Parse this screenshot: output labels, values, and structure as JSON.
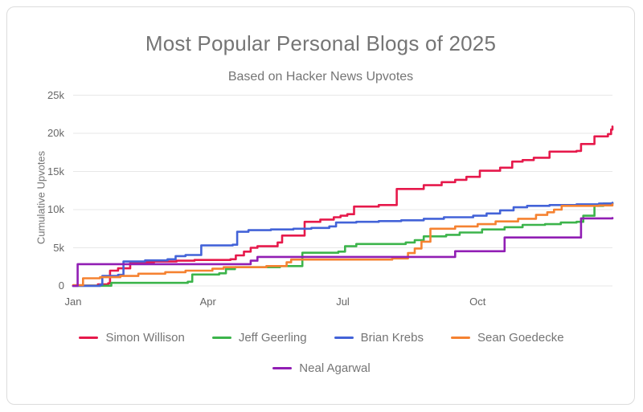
{
  "header": {
    "title": "Most Popular Personal Blogs of 2025",
    "subtitle": "Based on Hacker News Upvotes"
  },
  "chart_data": {
    "type": "line",
    "step": true,
    "title": "Most Popular Personal Blogs of 2025",
    "subtitle": "Based on Hacker News Upvotes",
    "xlabel": "",
    "ylabel": "Cumulative Upvotes",
    "grid": "horizontal",
    "legend_position": "bottom",
    "colors": {
      "grid": "#e7e7e7",
      "axis_text": "#666666",
      "title_text": "#757575",
      "legend_text": "#757575"
    },
    "x_axis": {
      "unit": "month",
      "range_months": [
        0,
        12
      ],
      "ticks": [
        {
          "label": "Jan",
          "month": 0
        },
        {
          "label": "Apr",
          "month": 3
        },
        {
          "label": "Jul",
          "month": 6
        },
        {
          "label": "Oct",
          "month": 9
        }
      ]
    },
    "y_axis": {
      "range": [
        0,
        25000
      ],
      "ticks": [
        {
          "label": "0",
          "value": 0
        },
        {
          "label": "5k",
          "value": 5000
        },
        {
          "label": "10k",
          "value": 10000
        },
        {
          "label": "15k",
          "value": 15000
        },
        {
          "label": "20k",
          "value": 20000
        },
        {
          "label": "25k",
          "value": 25000
        }
      ]
    },
    "series": [
      {
        "name": "Simon Willison",
        "color": "#e6194b",
        "points": [
          [
            0,
            50
          ],
          [
            0.55,
            200
          ],
          [
            0.78,
            350
          ],
          [
            0.82,
            2000
          ],
          [
            1.0,
            2300
          ],
          [
            1.27,
            3100
          ],
          [
            1.8,
            3200
          ],
          [
            2.3,
            3300
          ],
          [
            2.7,
            3400
          ],
          [
            3.5,
            3500
          ],
          [
            3.62,
            4000
          ],
          [
            3.8,
            4500
          ],
          [
            3.95,
            5000
          ],
          [
            4.1,
            5200
          ],
          [
            4.55,
            5700
          ],
          [
            4.65,
            6600
          ],
          [
            5.15,
            8400
          ],
          [
            5.5,
            8700
          ],
          [
            5.8,
            9000
          ],
          [
            5.95,
            9200
          ],
          [
            6.1,
            9400
          ],
          [
            6.25,
            10400
          ],
          [
            6.8,
            10600
          ],
          [
            7.2,
            12700
          ],
          [
            7.8,
            13200
          ],
          [
            8.2,
            13600
          ],
          [
            8.5,
            13900
          ],
          [
            8.75,
            14300
          ],
          [
            9.05,
            15100
          ],
          [
            9.5,
            15500
          ],
          [
            9.77,
            16300
          ],
          [
            10.0,
            16500
          ],
          [
            10.25,
            16800
          ],
          [
            10.6,
            17600
          ],
          [
            11.2,
            17700
          ],
          [
            11.3,
            18600
          ],
          [
            11.6,
            19600
          ],
          [
            11.9,
            19900
          ],
          [
            11.97,
            20500
          ],
          [
            12,
            20900
          ]
        ]
      },
      {
        "name": "Jeff Geerling",
        "color": "#3cb44b",
        "points": [
          [
            0,
            20
          ],
          [
            0.85,
            400
          ],
          [
            2.55,
            550
          ],
          [
            2.65,
            1500
          ],
          [
            3.25,
            1650
          ],
          [
            3.4,
            2200
          ],
          [
            3.6,
            2450
          ],
          [
            4.6,
            2600
          ],
          [
            5.1,
            4350
          ],
          [
            5.9,
            4500
          ],
          [
            6.05,
            5200
          ],
          [
            6.3,
            5500
          ],
          [
            7.4,
            5700
          ],
          [
            7.6,
            6000
          ],
          [
            7.8,
            6500
          ],
          [
            8.3,
            6700
          ],
          [
            8.6,
            7000
          ],
          [
            9.1,
            7400
          ],
          [
            9.6,
            7700
          ],
          [
            10.0,
            8000
          ],
          [
            10.5,
            8100
          ],
          [
            10.85,
            8300
          ],
          [
            11.2,
            8400
          ],
          [
            11.35,
            9200
          ],
          [
            11.6,
            10500
          ],
          [
            11.8,
            10800
          ],
          [
            12,
            10850
          ]
        ]
      },
      {
        "name": "Brian Krebs",
        "color": "#4363d8",
        "points": [
          [
            0,
            0
          ],
          [
            0.6,
            150
          ],
          [
            0.65,
            1300
          ],
          [
            1.0,
            1450
          ],
          [
            1.12,
            3200
          ],
          [
            1.6,
            3350
          ],
          [
            2.1,
            3500
          ],
          [
            2.28,
            3900
          ],
          [
            2.5,
            4050
          ],
          [
            2.85,
            5300
          ],
          [
            3.55,
            5400
          ],
          [
            3.65,
            7100
          ],
          [
            3.9,
            7300
          ],
          [
            4.4,
            7400
          ],
          [
            4.9,
            7500
          ],
          [
            5.3,
            7600
          ],
          [
            5.7,
            7800
          ],
          [
            5.85,
            8300
          ],
          [
            6.3,
            8400
          ],
          [
            6.8,
            8500
          ],
          [
            7.3,
            8600
          ],
          [
            7.8,
            8800
          ],
          [
            8.25,
            9000
          ],
          [
            8.9,
            9200
          ],
          [
            9.2,
            9500
          ],
          [
            9.5,
            9900
          ],
          [
            9.8,
            10300
          ],
          [
            10.1,
            10500
          ],
          [
            10.6,
            10600
          ],
          [
            11.2,
            10700
          ],
          [
            11.7,
            10800
          ],
          [
            12,
            10900
          ]
        ]
      },
      {
        "name": "Sean Goedecke",
        "color": "#f58231",
        "points": [
          [
            0,
            100
          ],
          [
            0.22,
            1000
          ],
          [
            0.6,
            1150
          ],
          [
            1.05,
            1300
          ],
          [
            1.45,
            1600
          ],
          [
            2.05,
            1800
          ],
          [
            2.5,
            2000
          ],
          [
            3.1,
            2250
          ],
          [
            3.35,
            2450
          ],
          [
            4.3,
            2600
          ],
          [
            4.75,
            3100
          ],
          [
            4.85,
            3450
          ],
          [
            7.1,
            3600
          ],
          [
            7.45,
            4300
          ],
          [
            7.6,
            4900
          ],
          [
            7.75,
            5800
          ],
          [
            7.95,
            7500
          ],
          [
            8.5,
            7800
          ],
          [
            9.0,
            8100
          ],
          [
            9.4,
            8450
          ],
          [
            9.9,
            8800
          ],
          [
            10.3,
            9300
          ],
          [
            10.55,
            9650
          ],
          [
            10.7,
            10000
          ],
          [
            10.87,
            10500
          ],
          [
            11.7,
            10550
          ],
          [
            12,
            10700
          ]
        ]
      },
      {
        "name": "Neal Agarwal",
        "color": "#911eb4",
        "points": [
          [
            0,
            0
          ],
          [
            0.1,
            2850
          ],
          [
            3.95,
            3300
          ],
          [
            4.1,
            3800
          ],
          [
            8.5,
            4550
          ],
          [
            9.6,
            6350
          ],
          [
            11.3,
            8850
          ],
          [
            12,
            8900
          ]
        ]
      }
    ]
  }
}
